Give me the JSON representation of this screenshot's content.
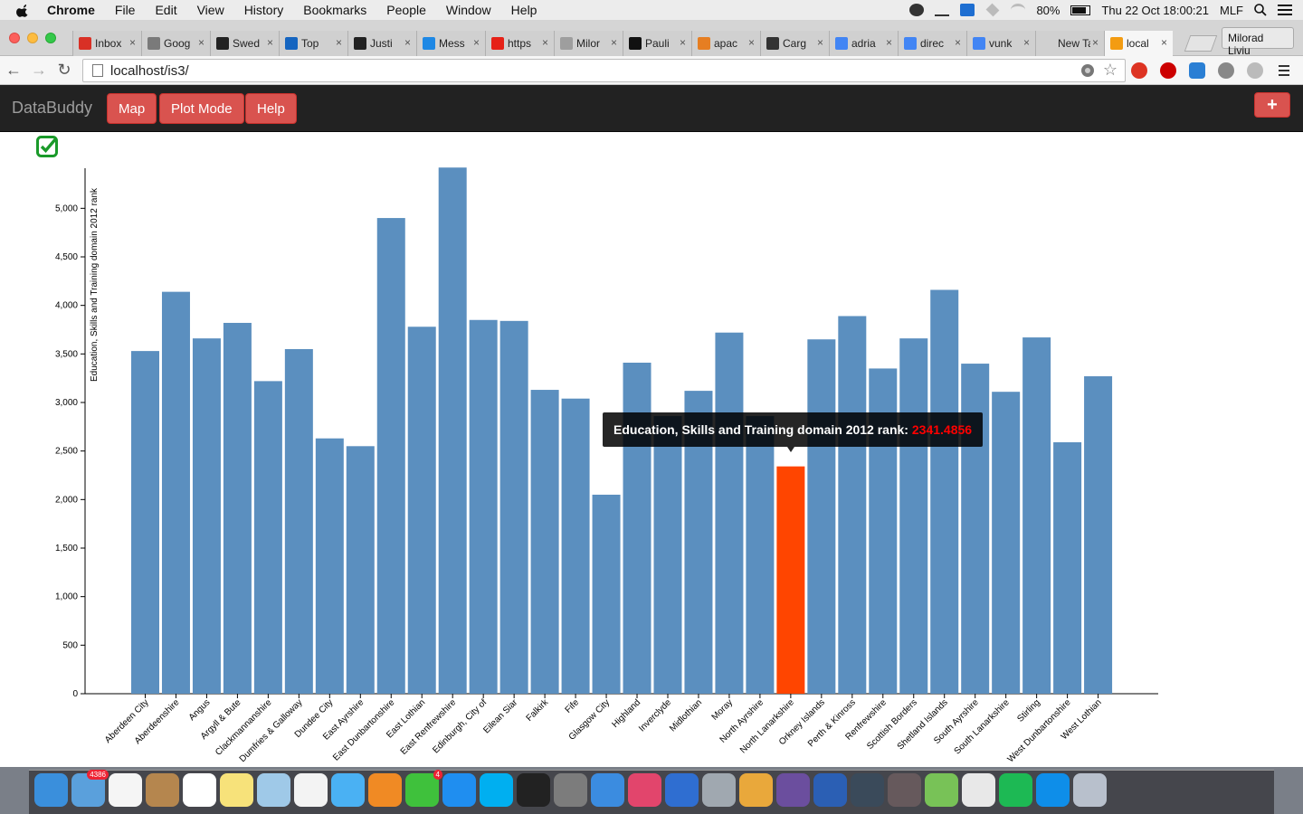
{
  "menubar": {
    "app": "Chrome",
    "items": [
      "File",
      "Edit",
      "View",
      "History",
      "Bookmarks",
      "People",
      "Window",
      "Help"
    ],
    "battery": "80%",
    "datetime": "Thu 22 Oct  18:00:21",
    "input_source": "MLF"
  },
  "browser": {
    "tabs": [
      {
        "title": "Inbox",
        "color": "#d93025"
      },
      {
        "title": "Goog",
        "color": "#7a7a7a"
      },
      {
        "title": "Swed",
        "color": "#222222"
      },
      {
        "title": "Top",
        "color": "#1565c0"
      },
      {
        "title": "Justi",
        "color": "#222222"
      },
      {
        "title": "Mess",
        "color": "#1e88e5"
      },
      {
        "title": "https",
        "color": "#e62117"
      },
      {
        "title": "Milor",
        "color": "#9e9e9e"
      },
      {
        "title": "Pauli",
        "color": "#111111"
      },
      {
        "title": "apac",
        "color": "#e67e22"
      },
      {
        "title": "Carg",
        "color": "#333333"
      },
      {
        "title": "adria",
        "color": "#4285f4"
      },
      {
        "title": "direc",
        "color": "#4285f4"
      },
      {
        "title": "vunk",
        "color": "#4285f4"
      },
      {
        "title": "New Ta",
        "color": "#d0d0d0"
      },
      {
        "title": "local",
        "color": "#f39c12"
      }
    ],
    "profile_name": "Milorad Liviu",
    "url": "localhost/is3/"
  },
  "app": {
    "brand": "DataBuddy",
    "buttons": {
      "map": "Map",
      "plot_mode": "Plot Mode",
      "help": "Help",
      "add": "+"
    }
  },
  "tooltip": {
    "label": "Education, Skills and Training domain 2012 rank:",
    "value": "2341.4856"
  },
  "chart_data": {
    "type": "bar",
    "ylabel": "Education, Skills and Training domain 2012 rank",
    "ylim": [
      0,
      5400
    ],
    "yticks": [
      0,
      500,
      1000,
      1500,
      2000,
      2500,
      3000,
      3500,
      4000,
      4500,
      5000
    ],
    "ytick_labels": [
      "0",
      "500",
      "1,000",
      "1,500",
      "2,000",
      "2,500",
      "3,000",
      "3,500",
      "4,000",
      "4,500",
      "5,000"
    ],
    "bar_color": "#5b8fbf",
    "highlight_color": "#ff4500",
    "highlight_index": 21,
    "categories": [
      "Aberdeen City",
      "Aberdeenshire",
      "Angus",
      "Argyll & Bute",
      "Clackmannanshire",
      "Dumfries & Galloway",
      "Dundee City",
      "East Ayrshire",
      "East Dunbartonshire",
      "East Lothian",
      "East Renfrewshire",
      "Edinburgh, City of",
      "Eilean Siar",
      "Falkirk",
      "Fife",
      "Glasgow City",
      "Highland",
      "Inverclyde",
      "Midlothian",
      "Moray",
      "North Ayrshire",
      "North Lanarkshire",
      "Orkney Islands",
      "Perth & Kinross",
      "Renfrewshire",
      "Scottish Borders",
      "Shetland Islands",
      "South Ayrshire",
      "South Lanarkshire",
      "Stirling",
      "West Dunbartonshire",
      "West Lothian"
    ],
    "values": [
      3530,
      4140,
      3660,
      3820,
      3220,
      3550,
      2630,
      2550,
      4900,
      3780,
      5420,
      3850,
      3840,
      3130,
      3040,
      2050,
      3410,
      2860,
      3120,
      3720,
      2860,
      2341.4856,
      3650,
      3890,
      3350,
      3660,
      4160,
      3400,
      3110,
      3670,
      2590,
      3270
    ]
  },
  "dock": [
    {
      "name": "finder",
      "color": "#3a8fdc"
    },
    {
      "name": "mail",
      "color": "#5aa0dc",
      "badge": "4386"
    },
    {
      "name": "reminders",
      "color": "#f5f5f5"
    },
    {
      "name": "contacts",
      "color": "#b5864e"
    },
    {
      "name": "calendar",
      "color": "#ffffff"
    },
    {
      "name": "notes",
      "color": "#f7e27a"
    },
    {
      "name": "preview",
      "color": "#9fc9e8"
    },
    {
      "name": "photos",
      "color": "#f3f3f3"
    },
    {
      "name": "messages",
      "color": "#4ab1f3"
    },
    {
      "name": "ibooks",
      "color": "#f08a24"
    },
    {
      "name": "facetime",
      "color": "#3fc13c",
      "badge": "4"
    },
    {
      "name": "app-store",
      "color": "#1f8ef0"
    },
    {
      "name": "skype",
      "color": "#00aff0"
    },
    {
      "name": "terminal",
      "color": "#222222"
    },
    {
      "name": "system-prefs",
      "color": "#7c7c7c"
    },
    {
      "name": "xcode",
      "color": "#3b8ce0"
    },
    {
      "name": "itunes",
      "color": "#e2456c"
    },
    {
      "name": "1password",
      "color": "#2f6ed1"
    },
    {
      "name": "image-capture",
      "color": "#a0a8b0"
    },
    {
      "name": "chrome",
      "color": "#e9a83b"
    },
    {
      "name": "eclipse",
      "color": "#6b4e9e"
    },
    {
      "name": "word",
      "color": "#2b5fb4"
    },
    {
      "name": "x11",
      "color": "#3a4a5a"
    },
    {
      "name": "atom",
      "color": "#66595c"
    },
    {
      "name": "android-studio",
      "color": "#78c257"
    },
    {
      "name": "launchpad-grid",
      "color": "#e8e8e8"
    },
    {
      "name": "spotify",
      "color": "#1db954"
    },
    {
      "name": "teamviewer",
      "color": "#0e8ee9"
    },
    {
      "name": "utilities",
      "color": "#b8c0cc"
    }
  ]
}
